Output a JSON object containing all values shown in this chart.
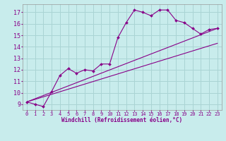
{
  "title": "",
  "xlabel": "Windchill (Refroidissement éolien,°C)",
  "ylabel": "",
  "background_color": "#c8ecec",
  "grid_color": "#aad4d4",
  "line_color": "#880088",
  "xlim": [
    -0.5,
    23.5
  ],
  "ylim": [
    8.5,
    17.7
  ],
  "yticks": [
    9,
    10,
    11,
    12,
    13,
    14,
    15,
    16,
    17
  ],
  "xticks": [
    0,
    1,
    2,
    3,
    4,
    5,
    6,
    7,
    8,
    9,
    10,
    11,
    12,
    13,
    14,
    15,
    16,
    17,
    18,
    19,
    20,
    21,
    22,
    23
  ],
  "series": [
    {
      "x": [
        0,
        1,
        2,
        3,
        4,
        5,
        6,
        7,
        8,
        9,
        10,
        11,
        12,
        13,
        14,
        15,
        16,
        17,
        18,
        19,
        20,
        21,
        22,
        23
      ],
      "y": [
        9.2,
        9.0,
        8.8,
        10.1,
        11.5,
        12.1,
        11.7,
        12.0,
        11.9,
        12.5,
        12.5,
        14.8,
        16.1,
        17.2,
        17.0,
        16.7,
        17.2,
        17.2,
        16.3,
        16.1,
        15.6,
        15.1,
        15.5,
        15.6
      ],
      "markers": true
    },
    {
      "x": [
        0,
        23
      ],
      "y": [
        9.2,
        15.6
      ],
      "markers": false
    },
    {
      "x": [
        0,
        23
      ],
      "y": [
        9.2,
        14.3
      ],
      "markers": false
    }
  ],
  "figsize": [
    3.2,
    2.0
  ],
  "dpi": 100,
  "tick_fontsize": 5,
  "xlabel_fontsize": 5.5
}
